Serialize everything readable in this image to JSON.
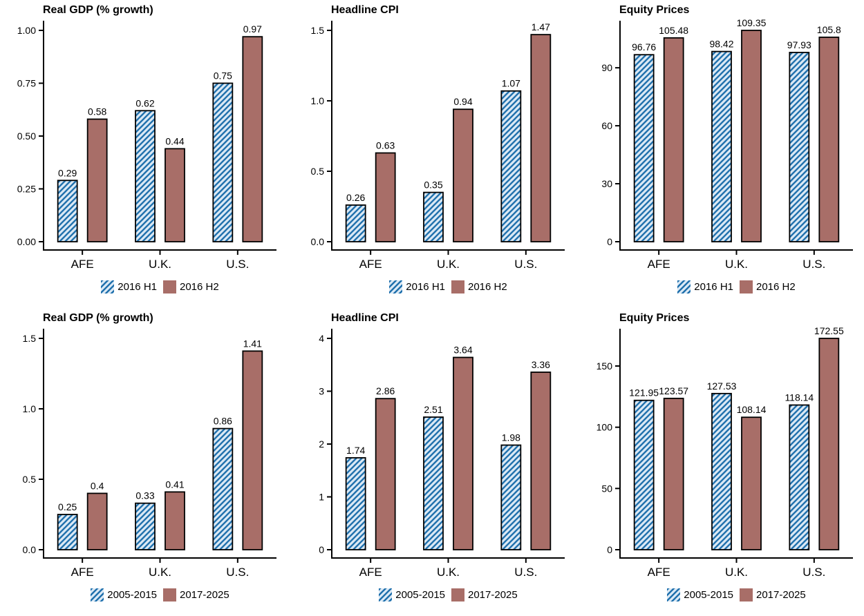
{
  "page": {
    "background": "#ffffff",
    "grid": "2 rows x 3 columns of bar charts"
  },
  "colors": {
    "hatch_bg": "#dbe9f5",
    "hatch_stripe": "#2171ad",
    "solid_fill": "#a86e68",
    "bar_outline": "#000000",
    "axis": "#000000",
    "text": "#000000"
  },
  "chart_data": [
    {
      "type": "bar",
      "title": "Real GDP (% growth)",
      "categories": [
        "AFE",
        "U.K.",
        "U.S."
      ],
      "series": [
        {
          "name": "2016 H1",
          "style": "hatched",
          "values": [
            0.29,
            0.62,
            0.75
          ],
          "labels": [
            "0.29",
            "0.62",
            "0.75"
          ]
        },
        {
          "name": "2016 H2",
          "style": "solid",
          "values": [
            0.58,
            0.44,
            0.97
          ],
          "labels": [
            "0.58",
            "0.44",
            "0.97"
          ]
        }
      ],
      "y_axis": {
        "tick_values": [
          0,
          0.25,
          0.5,
          0.75,
          1
        ],
        "tick_labels": [
          "0.00",
          "0.25",
          "0.50",
          "0.75",
          "1.00"
        ],
        "ylim": [
          0,
          1.0
        ]
      },
      "grid_lines": false,
      "legend_position": "bottom"
    },
    {
      "type": "bar",
      "title": "Headline CPI",
      "categories": [
        "AFE",
        "U.K.",
        "U.S."
      ],
      "series": [
        {
          "name": "2016 H1",
          "style": "hatched",
          "values": [
            0.26,
            0.35,
            1.07
          ],
          "labels": [
            "0.26",
            "0.35",
            "1.07"
          ]
        },
        {
          "name": "2016 H2",
          "style": "solid",
          "values": [
            0.63,
            0.94,
            1.47
          ],
          "labels": [
            "0.63",
            "0.94",
            "1.47"
          ]
        }
      ],
      "y_axis": {
        "tick_values": [
          0,
          0.5,
          1,
          1.5
        ],
        "tick_labels": [
          "0.0",
          "0.5",
          "1.0",
          "1.5"
        ],
        "ylim": [
          0,
          1.5
        ]
      },
      "grid_lines": false,
      "legend_position": "bottom"
    },
    {
      "type": "bar",
      "title": "Equity Prices",
      "categories": [
        "AFE",
        "U.K.",
        "U.S."
      ],
      "series": [
        {
          "name": "2016 H1",
          "style": "hatched",
          "values": [
            96.76,
            98.42,
            97.93
          ],
          "labels": [
            "96.76",
            "98.42",
            "97.93"
          ]
        },
        {
          "name": "2016 H2",
          "style": "solid",
          "values": [
            105.48,
            109.35,
            105.8
          ],
          "labels": [
            "105.48",
            "109.35",
            "105.8"
          ]
        }
      ],
      "y_axis": {
        "tick_values": [
          0,
          30,
          60,
          90
        ],
        "tick_labels": [
          "0",
          "30",
          "60",
          "90"
        ],
        "ylim": [
          0,
          109.35
        ]
      },
      "grid_lines": false,
      "legend_position": "bottom"
    },
    {
      "type": "bar",
      "title": "Real GDP (% growth)",
      "categories": [
        "AFE",
        "U.K.",
        "U.S."
      ],
      "series": [
        {
          "name": "2005-2015",
          "style": "hatched",
          "values": [
            0.25,
            0.33,
            0.86
          ],
          "labels": [
            "0.25",
            "0.33",
            "0.86"
          ]
        },
        {
          "name": "2017-2025",
          "style": "solid",
          "values": [
            0.4,
            0.41,
            1.41
          ],
          "labels": [
            "0.4",
            "0.41",
            "1.41"
          ]
        }
      ],
      "y_axis": {
        "tick_values": [
          0,
          0.5,
          1,
          1.5
        ],
        "tick_labels": [
          "0.0",
          "0.5",
          "1.0",
          "1.5"
        ],
        "ylim": [
          0,
          1.5
        ]
      },
      "grid_lines": false,
      "legend_position": "bottom"
    },
    {
      "type": "bar",
      "title": "Headline CPI",
      "categories": [
        "AFE",
        "U.K.",
        "U.S."
      ],
      "series": [
        {
          "name": "2005-2015",
          "style": "hatched",
          "values": [
            1.74,
            2.51,
            1.98
          ],
          "labels": [
            "1.74",
            "2.51",
            "1.98"
          ]
        },
        {
          "name": "2017-2025",
          "style": "solid",
          "values": [
            2.86,
            3.64,
            3.36
          ],
          "labels": [
            "2.86",
            "3.64",
            "3.36"
          ]
        }
      ],
      "y_axis": {
        "tick_values": [
          0,
          1,
          2,
          3,
          4
        ],
        "tick_labels": [
          "0",
          "1",
          "2",
          "3",
          "4"
        ],
        "ylim": [
          0,
          4
        ]
      },
      "grid_lines": false,
      "legend_position": "bottom"
    },
    {
      "type": "bar",
      "title": "Equity Prices",
      "categories": [
        "AFE",
        "U.K.",
        "U.S."
      ],
      "series": [
        {
          "name": "2005-2015",
          "style": "hatched",
          "values": [
            121.95,
            127.53,
            118.14
          ],
          "labels": [
            "121.95",
            "127.53",
            "118.14"
          ]
        },
        {
          "name": "2017-2025",
          "style": "solid",
          "values": [
            123.57,
            108.14,
            172.55
          ],
          "labels": [
            "123.57",
            "108.14",
            "172.55"
          ]
        }
      ],
      "y_axis": {
        "tick_values": [
          0,
          50,
          100,
          150
        ],
        "tick_labels": [
          "0",
          "50",
          "100",
          "150"
        ],
        "ylim": [
          0,
          172.55
        ]
      },
      "grid_lines": false,
      "legend_position": "bottom"
    }
  ]
}
